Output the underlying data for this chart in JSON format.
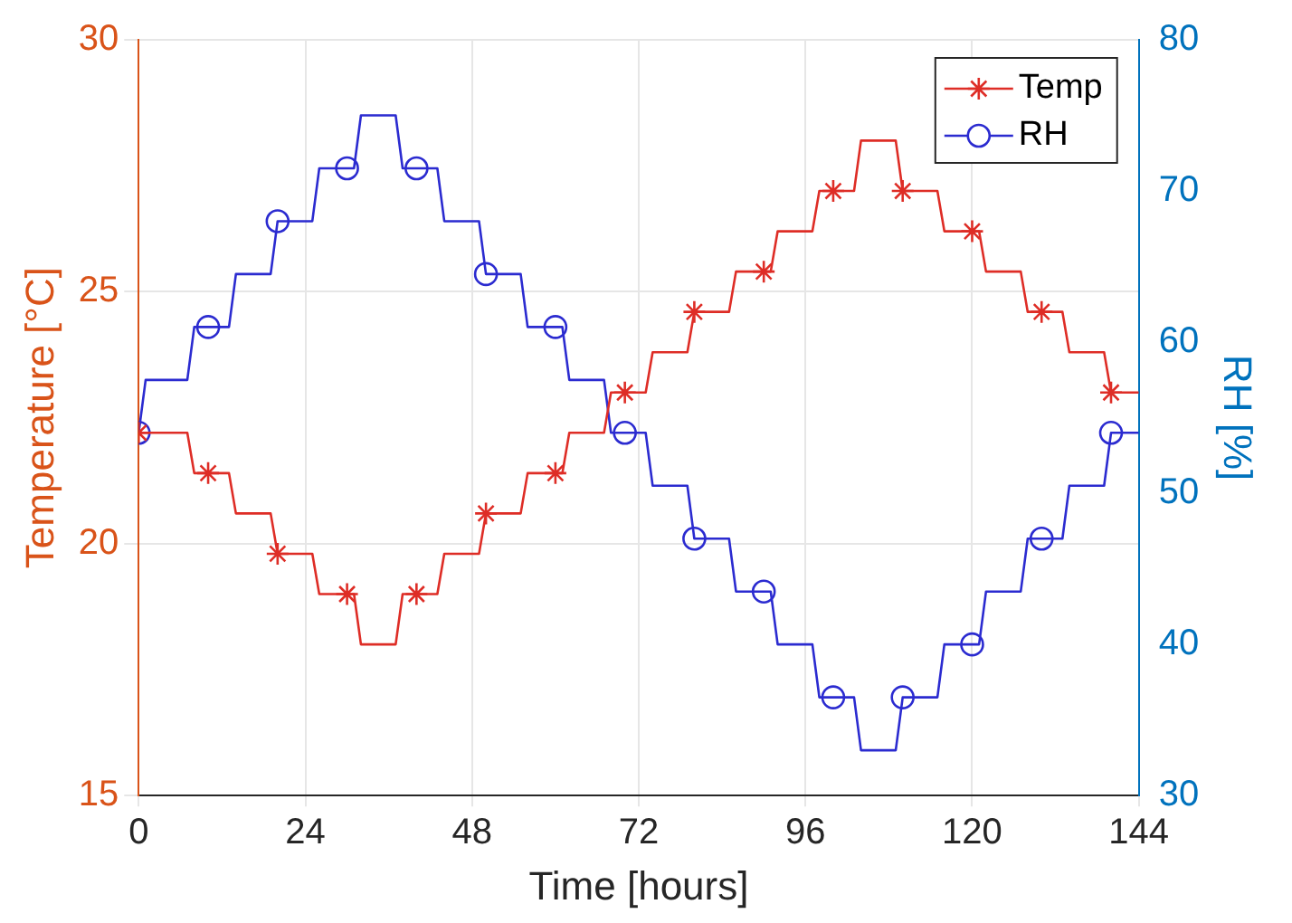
{
  "chart_data": {
    "type": "line",
    "xlabel": "Time [hours]",
    "ylabel": "Temperature [°C]",
    "y2label": "RH [%]",
    "xlim": [
      0,
      144
    ],
    "xticks": [
      0,
      24,
      48,
      72,
      96,
      120,
      144
    ],
    "ylim": [
      15,
      30
    ],
    "yticks": [
      15,
      20,
      25,
      30
    ],
    "y2lim": [
      30,
      80
    ],
    "y2ticks": [
      30,
      40,
      50,
      60,
      70,
      80
    ],
    "grid": true,
    "legend": "top right",
    "series": [
      {
        "name": "Temp",
        "color": "#de2d26",
        "axis": "y",
        "marker": "none",
        "x": [
          0,
          7,
          8,
          13,
          14,
          19,
          20,
          25,
          26,
          31,
          32,
          37,
          38,
          43,
          44,
          49,
          50,
          55,
          56,
          61,
          62,
          67,
          68,
          73,
          74,
          79,
          80,
          85,
          86,
          91,
          92,
          97,
          98,
          103,
          104,
          109,
          110,
          115,
          116,
          121,
          122,
          127,
          128,
          133,
          134,
          139,
          140,
          144
        ],
        "values": [
          22.2,
          22.2,
          21.4,
          21.4,
          20.6,
          20.6,
          19.8,
          19.8,
          19.0,
          19.0,
          18.0,
          18.0,
          19.0,
          19.0,
          19.8,
          19.8,
          20.6,
          20.6,
          21.4,
          21.4,
          22.2,
          22.2,
          23.0,
          23.0,
          23.8,
          23.8,
          24.6,
          24.6,
          25.4,
          25.4,
          26.2,
          26.2,
          27.0,
          27.0,
          28.0,
          28.0,
          27.0,
          27.0,
          26.2,
          26.2,
          25.4,
          25.4,
          24.6,
          24.6,
          23.8,
          23.8,
          23.0,
          23.0
        ]
      },
      {
        "type": "scatter",
        "color": "#de2d26",
        "axis": "y",
        "marker": "cross",
        "x": [
          0,
          10,
          20,
          30,
          40,
          50,
          60,
          70,
          80,
          90,
          100,
          110,
          120,
          130,
          140
        ],
        "values": [
          22.2,
          21.4,
          19.8,
          19.0,
          19.0,
          20.6,
          21.4,
          23.0,
          24.6,
          25.4,
          27.0,
          27.0,
          26.2,
          24.6,
          23.0
        ]
      },
      {
        "name": "RH",
        "color": "#2b2bd0",
        "axis": "y2",
        "marker": "none",
        "x": [
          0,
          1,
          7,
          8,
          13,
          14,
          19,
          20,
          25,
          26,
          31,
          32,
          37,
          38,
          43,
          44,
          49,
          50,
          55,
          56,
          61,
          62,
          67,
          68,
          73,
          74,
          79,
          80,
          85,
          86,
          91,
          92,
          97,
          98,
          103,
          104,
          109,
          110,
          115,
          116,
          121,
          122,
          127,
          128,
          133,
          134,
          139,
          140,
          144
        ],
        "values": [
          54,
          57.5,
          57.5,
          61,
          61,
          64.5,
          64.5,
          68,
          68,
          71.5,
          71.5,
          75,
          75,
          71.5,
          71.5,
          68,
          68,
          64.5,
          64.5,
          61,
          61,
          57.5,
          57.5,
          54,
          54,
          50.5,
          50.5,
          47,
          47,
          43.5,
          43.5,
          40,
          40,
          36.5,
          36.5,
          33,
          33,
          36.5,
          36.5,
          40,
          40,
          43.5,
          43.5,
          47,
          47,
          50.5,
          50.5,
          54,
          54
        ]
      },
      {
        "type": "scatter",
        "color": "#2b2bd0",
        "axis": "y2",
        "marker": "circle",
        "x": [
          0,
          10,
          20,
          30,
          40,
          50,
          60,
          70,
          80,
          90,
          100,
          110,
          120,
          130,
          140
        ],
        "values": [
          54,
          61,
          68,
          71.5,
          71.5,
          64.5,
          61,
          54,
          47,
          43.5,
          36.5,
          36.5,
          40,
          47,
          54
        ]
      }
    ]
  }
}
